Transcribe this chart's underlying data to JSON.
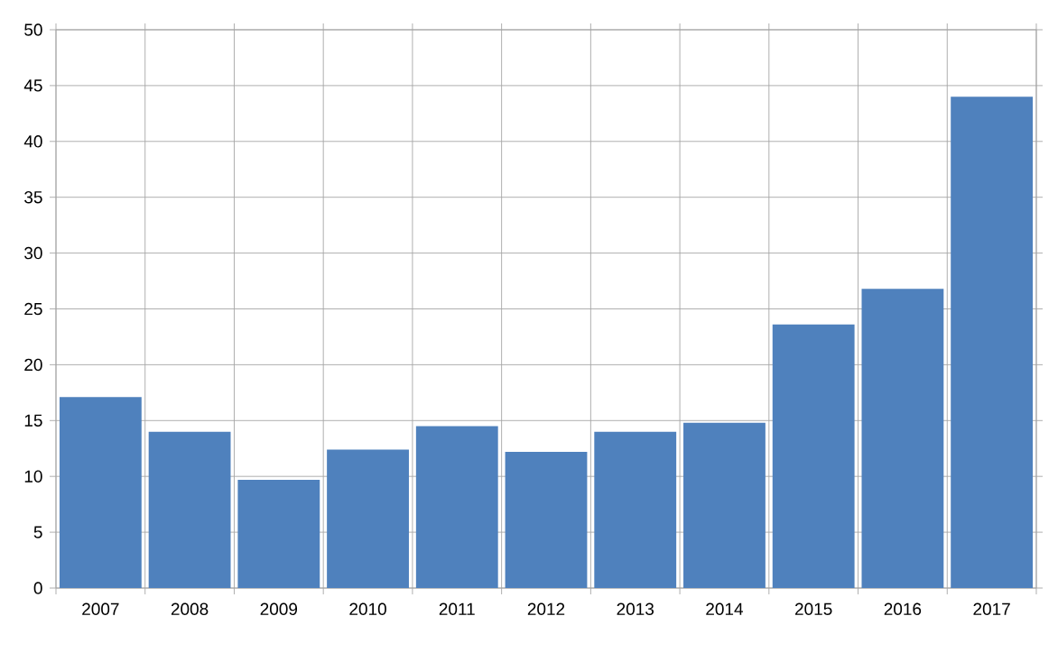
{
  "chart_data": {
    "type": "bar",
    "categories": [
      "2007",
      "2008",
      "2009",
      "2010",
      "2011",
      "2012",
      "2013",
      "2014",
      "2015",
      "2016",
      "2017"
    ],
    "values": [
      17.1,
      14.0,
      9.7,
      12.4,
      14.5,
      12.2,
      14.0,
      14.8,
      23.6,
      26.8,
      44.0
    ],
    "color": "#4f81bd",
    "ylim": [
      0,
      50
    ],
    "yticks": [
      0,
      5,
      10,
      15,
      20,
      25,
      30,
      35,
      40,
      45,
      50
    ],
    "grid": true
  }
}
